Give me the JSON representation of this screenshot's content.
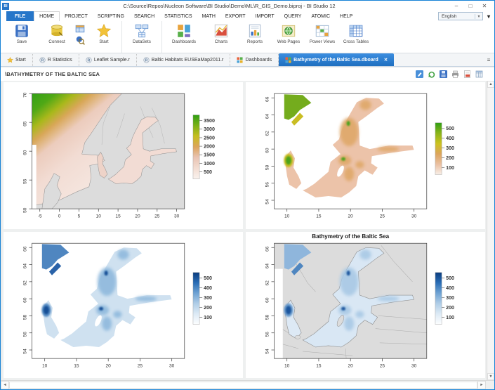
{
  "window": {
    "title": "C:\\Source\\Repos\\Nucleon Software\\BI Studio\\Demo\\ML\\R_GIS_Demo.biproj - BI Studio 12",
    "icon_text": "BI"
  },
  "glyphs": {
    "minimize": "–",
    "maximize": "□",
    "close": "✕",
    "tab_close": "✕",
    "combo_caret": "▾",
    "ribbon_collapse": "▾",
    "tab_overflow": "≡",
    "scroll_up": "▲",
    "scroll_down": "▼",
    "scroll_left": "◄",
    "scroll_right": "►"
  },
  "menu": {
    "file_label": "FILE",
    "items": [
      "HOME",
      "PROJECT",
      "SCRIPTING",
      "SEARCH",
      "STATISTICS",
      "MATH",
      "EXPORT",
      "IMPORT",
      "QUERY",
      "ATOMIC",
      "HELP"
    ],
    "active_item": "HOME",
    "language": {
      "value": "English"
    }
  },
  "ribbon": {
    "buttons": [
      {
        "label": "Save"
      },
      {
        "label": "Connect"
      },
      {
        "label": "Start"
      },
      {
        "label": "DataSets"
      },
      {
        "label": "Dashboards"
      },
      {
        "label": "Charts"
      },
      {
        "label": "Reports"
      },
      {
        "label": "Web Pages"
      },
      {
        "label": "Power Views"
      },
      {
        "label": "Cross Tables"
      }
    ]
  },
  "doc_tabs": [
    {
      "label": "Start",
      "icon": "star"
    },
    {
      "label": "R Statistics",
      "icon": "r-script"
    },
    {
      "label": "Leaflet Sample.r",
      "icon": "r-script"
    },
    {
      "label": "Baltic Habitats EUSEaMap2011.r",
      "icon": "r-script"
    },
    {
      "label": "Dashboards",
      "icon": "dashboard-tiles"
    },
    {
      "label": "Bathymetry of the Baltic Sea.dboard",
      "icon": "dashboard-tiles",
      "active": true
    }
  ],
  "content": {
    "title": "\\BATHYMETRY OF THE BALTIC SEA",
    "toolbar_icons": [
      "edit",
      "refresh",
      "save",
      "print",
      "export-pdf",
      "grid-view"
    ]
  },
  "colors": {
    "accent_blue": "#2b7cd3",
    "window_border": "#1883d7",
    "active_tab_top": "#3c8ee0",
    "active_tab_bottom": "#1f6fc0",
    "land_gray": "#dcdcdc",
    "dashboard_bg": "#eef0f0"
  },
  "chart_data": [
    {
      "type": "map",
      "panel": "top-left",
      "title": "",
      "xlabel": "",
      "ylabel": "",
      "xlim": [
        -7,
        32
      ],
      "ylim": [
        50,
        70
      ],
      "xticks": [
        "-5",
        "0",
        "5",
        "10",
        "15",
        "20",
        "25",
        "30"
      ],
      "yticks": [
        "50",
        "55",
        "60",
        "65",
        "70"
      ],
      "legend": {
        "values": [
          "3500",
          "3000",
          "2500",
          "2000",
          "1500",
          "1000",
          "500"
        ],
        "colors": [
          "#2f9e14",
          "#7bb017",
          "#c6be1e",
          "#dca45c",
          "#e9c4b4",
          "#f3ddd2",
          "#f9f2ee"
        ],
        "position": "right"
      },
      "description": "Bathymetry raster of North Sea / Norwegian Sea / Baltic Sea; green = deep Atlantic (~3500 m), pink = shallow shelf, gray = land"
    },
    {
      "type": "map",
      "panel": "top-right",
      "title": "",
      "xlabel": "",
      "ylabel": "",
      "xlim": [
        8,
        32
      ],
      "ylim": [
        53,
        66.5
      ],
      "xticks": [
        "10",
        "15",
        "20",
        "25",
        "30"
      ],
      "yticks": [
        "54",
        "56",
        "58",
        "60",
        "62",
        "64",
        "66"
      ],
      "legend": {
        "values": [
          "500",
          "400",
          "300",
          "200",
          "100"
        ],
        "colors": [
          "#2f9e14",
          "#8ab41a",
          "#ccc21f",
          "#dca45c",
          "#eac0a2",
          "#f8efe8"
        ],
        "position": "right"
      },
      "description": "Baltic Sea depth on white background, terrain palette (green deep → tan shallow)"
    },
    {
      "type": "map",
      "panel": "bottom-left",
      "title": "",
      "xlabel": "",
      "ylabel": "",
      "xlim": [
        8,
        32
      ],
      "ylim": [
        53,
        66.5
      ],
      "xticks": [
        "10",
        "15",
        "20",
        "25",
        "30"
      ],
      "yticks": [
        "54",
        "56",
        "58",
        "60",
        "62",
        "64",
        "66"
      ],
      "legend": {
        "values": [
          "500",
          "400",
          "300",
          "200",
          "100"
        ],
        "colors": [
          "#0b3d7e",
          "#2a6db5",
          "#6fa3d3",
          "#b0cde7",
          "#ddeaf5",
          "#fdfeff"
        ],
        "position": "right"
      },
      "description": "Baltic Sea depth on white background, blue palette (dark blue deep → white shallow)"
    },
    {
      "type": "map",
      "panel": "bottom-right",
      "title": "Bathymetry of the Baltic Sea",
      "xlabel": "",
      "ylabel": "",
      "xlim": [
        8,
        32
      ],
      "ylim": [
        53,
        66.5
      ],
      "xticks": [
        "10",
        "15",
        "20",
        "25",
        "30"
      ],
      "yticks": [
        "54",
        "56",
        "58",
        "60",
        "62",
        "64",
        "66"
      ],
      "legend": {
        "values": [
          "500",
          "400",
          "300",
          "200",
          "100"
        ],
        "colors": [
          "#0b3d7e",
          "#2a6db5",
          "#6fa3d3",
          "#b0cde7",
          "#ddeaf5",
          "#fdfeff"
        ],
        "position": "right"
      },
      "description": "Baltic Sea depth in blue palette over gray land basemap with coastlines and country borders"
    }
  ]
}
